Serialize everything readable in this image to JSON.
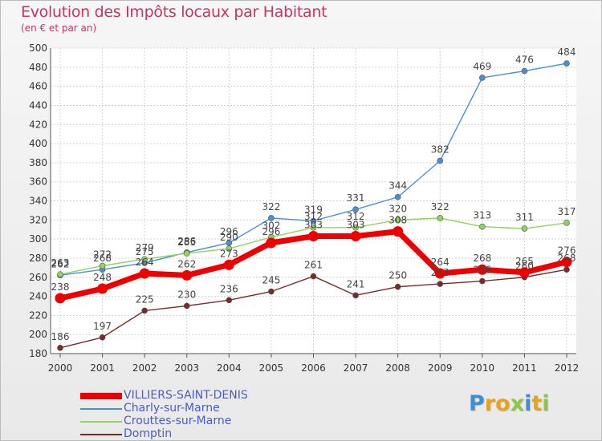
{
  "header": {
    "title": "Evolution des Impôts locaux par Habitant",
    "subtitle": "(en € et par an)"
  },
  "logo": {
    "letters": [
      {
        "char": "P",
        "color": "#3a8fd6"
      },
      {
        "char": "r",
        "color": "#e8a21c"
      },
      {
        "char": "o",
        "color": "#e8a21c"
      },
      {
        "char": "x",
        "color": "#8ec63f"
      },
      {
        "char": "i",
        "color": "#3a8fd6"
      },
      {
        "char": "t",
        "color": "#e8a21c"
      },
      {
        "char": "i",
        "color": "#8ec63f"
      }
    ]
  },
  "chart_data": {
    "type": "line",
    "x": [
      "2000",
      "2001",
      "2002",
      "2003",
      "2004",
      "2005",
      "2006",
      "2007",
      "2008",
      "2009",
      "2010",
      "2011",
      "2012"
    ],
    "ylim": [
      180,
      500
    ],
    "yticks": [
      180,
      200,
      220,
      240,
      260,
      280,
      300,
      320,
      340,
      360,
      380,
      400,
      420,
      440,
      460,
      480,
      500
    ],
    "grid": true,
    "legend_position": "bottom-left",
    "series": [
      {
        "name": "VILLIERS-SAINT-DENIS",
        "color": "#ee0000",
        "values": [
          238,
          248,
          264,
          262,
          273,
          296,
          303,
          303,
          308,
          264,
          268,
          265,
          276
        ]
      },
      {
        "name": "Charly-sur-Marne",
        "color": "#4a90d0",
        "values": [
          262,
          268,
          275,
          286,
          296,
          322,
          319,
          331,
          344,
          382,
          469,
          476,
          484
        ]
      },
      {
        "name": "Crouttes-sur-Marne",
        "color": "#8fd460",
        "values": [
          263,
          272,
          279,
          285,
          290,
          302,
          312,
          312,
          320,
          322,
          313,
          311,
          317
        ]
      },
      {
        "name": "Domptin",
        "color": "#7a2a2a",
        "values": [
          186,
          197,
          225,
          230,
          236,
          245,
          261,
          241,
          250,
          253,
          256,
          260,
          268
        ]
      }
    ]
  }
}
